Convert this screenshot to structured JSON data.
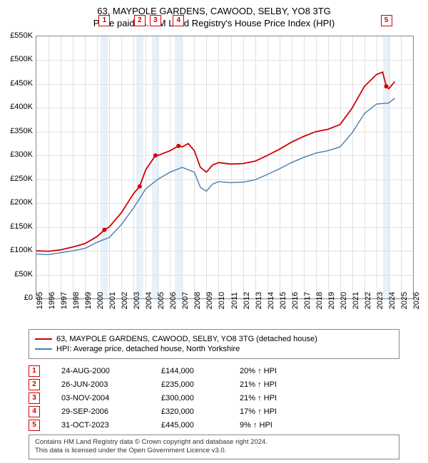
{
  "title_line1": "63, MAYPOLE GARDENS, CAWOOD, SELBY, YO8 3TG",
  "title_line2": "Price paid vs. HM Land Registry's House Price Index (HPI)",
  "chart": {
    "type": "line",
    "background_color": "#ffffff",
    "grid_color": "#e0e0e0",
    "axis_color": "#888888",
    "label_fontsize": 11,
    "title_fontsize": 13,
    "xlim": [
      1995,
      2026
    ],
    "ylim": [
      0,
      550000
    ],
    "ytick_step": 50000,
    "yticks": [
      "£0",
      "£50K",
      "£100K",
      "£150K",
      "£200K",
      "£250K",
      "£300K",
      "£350K",
      "£400K",
      "£450K",
      "£500K",
      "£550K"
    ],
    "xticks": [
      1995,
      1996,
      1997,
      1998,
      1999,
      2000,
      2001,
      2002,
      2003,
      2004,
      2005,
      2006,
      2007,
      2008,
      2009,
      2010,
      2011,
      2012,
      2013,
      2014,
      2015,
      2016,
      2017,
      2018,
      2019,
      2020,
      2021,
      2022,
      2023,
      2024,
      2025,
      2026
    ],
    "series": [
      {
        "name": "63, MAYPOLE GARDENS, CAWOOD, SELBY, YO8 3TG (detached house)",
        "color": "#d30000",
        "line_width": 1.8,
        "data": [
          [
            1995,
            100000
          ],
          [
            1996,
            99000
          ],
          [
            1997,
            102000
          ],
          [
            1998,
            108000
          ],
          [
            1999,
            115000
          ],
          [
            2000,
            130000
          ],
          [
            2000.6,
            144000
          ],
          [
            2001,
            150000
          ],
          [
            2002,
            180000
          ],
          [
            2003,
            220000
          ],
          [
            2003.5,
            235000
          ],
          [
            2004,
            270000
          ],
          [
            2004.8,
            300000
          ],
          [
            2005,
            300000
          ],
          [
            2006,
            310000
          ],
          [
            2006.7,
            320000
          ],
          [
            2007,
            318000
          ],
          [
            2007.5,
            325000
          ],
          [
            2008,
            310000
          ],
          [
            2008.5,
            275000
          ],
          [
            2009,
            265000
          ],
          [
            2009.5,
            280000
          ],
          [
            2010,
            285000
          ],
          [
            2011,
            282000
          ],
          [
            2012,
            283000
          ],
          [
            2013,
            288000
          ],
          [
            2014,
            300000
          ],
          [
            2015,
            313000
          ],
          [
            2016,
            328000
          ],
          [
            2017,
            340000
          ],
          [
            2018,
            350000
          ],
          [
            2019,
            355000
          ],
          [
            2020,
            365000
          ],
          [
            2021,
            400000
          ],
          [
            2022,
            445000
          ],
          [
            2023,
            470000
          ],
          [
            2023.5,
            475000
          ],
          [
            2023.8,
            445000
          ],
          [
            2024,
            440000
          ],
          [
            2024.5,
            455000
          ]
        ]
      },
      {
        "name": "HPI: Average price, detached house, North Yorkshire",
        "color": "#4a7fb0",
        "line_width": 1.4,
        "data": [
          [
            1995,
            93000
          ],
          [
            1996,
            92000
          ],
          [
            1997,
            96000
          ],
          [
            1998,
            100000
          ],
          [
            1999,
            105000
          ],
          [
            2000,
            118000
          ],
          [
            2001,
            128000
          ],
          [
            2002,
            155000
          ],
          [
            2003,
            190000
          ],
          [
            2004,
            230000
          ],
          [
            2005,
            250000
          ],
          [
            2006,
            265000
          ],
          [
            2007,
            275000
          ],
          [
            2008,
            265000
          ],
          [
            2008.5,
            233000
          ],
          [
            2009,
            225000
          ],
          [
            2009.5,
            240000
          ],
          [
            2010,
            245000
          ],
          [
            2011,
            243000
          ],
          [
            2012,
            244000
          ],
          [
            2013,
            249000
          ],
          [
            2014,
            260000
          ],
          [
            2015,
            272000
          ],
          [
            2016,
            285000
          ],
          [
            2017,
            296000
          ],
          [
            2018,
            305000
          ],
          [
            2019,
            310000
          ],
          [
            2020,
            318000
          ],
          [
            2021,
            348000
          ],
          [
            2022,
            388000
          ],
          [
            2023,
            408000
          ],
          [
            2024,
            410000
          ],
          [
            2024.5,
            420000
          ]
        ]
      }
    ],
    "sale_markers": [
      {
        "idx": "1",
        "year": 2000.6,
        "price": 144000
      },
      {
        "idx": "2",
        "year": 2003.5,
        "price": 235000
      },
      {
        "idx": "3",
        "year": 2004.8,
        "price": 300000
      },
      {
        "idx": "4",
        "year": 2006.7,
        "price": 320000
      },
      {
        "idx": "5",
        "year": 2023.8,
        "price": 445000
      }
    ],
    "sale_band_color": "#d8e6f3",
    "sale_marker_border": "#d30000",
    "point_marker_color": "#d30000",
    "point_marker_radius": 3
  },
  "legend": {
    "items": [
      {
        "label": "63, MAYPOLE GARDENS, CAWOOD, SELBY, YO8 3TG (detached house)",
        "color": "#d30000"
      },
      {
        "label": "HPI: Average price, detached house, North Yorkshire",
        "color": "#4a7fb0"
      }
    ]
  },
  "sales_table": {
    "rows": [
      {
        "idx": "1",
        "date": "24-AUG-2000",
        "price": "£144,000",
        "diff": "20% ↑ HPI"
      },
      {
        "idx": "2",
        "date": "26-JUN-2003",
        "price": "£235,000",
        "diff": "21% ↑ HPI"
      },
      {
        "idx": "3",
        "date": "03-NOV-2004",
        "price": "£300,000",
        "diff": "21% ↑ HPI"
      },
      {
        "idx": "4",
        "date": "29-SEP-2006",
        "price": "£320,000",
        "diff": "17% ↑ HPI"
      },
      {
        "idx": "5",
        "date": "31-OCT-2023",
        "price": "£445,000",
        "diff": "9% ↑ HPI"
      }
    ]
  },
  "attribution_line1": "Contains HM Land Registry data © Crown copyright and database right 2024.",
  "attribution_line2": "This data is licensed under the Open Government Licence v3.0."
}
